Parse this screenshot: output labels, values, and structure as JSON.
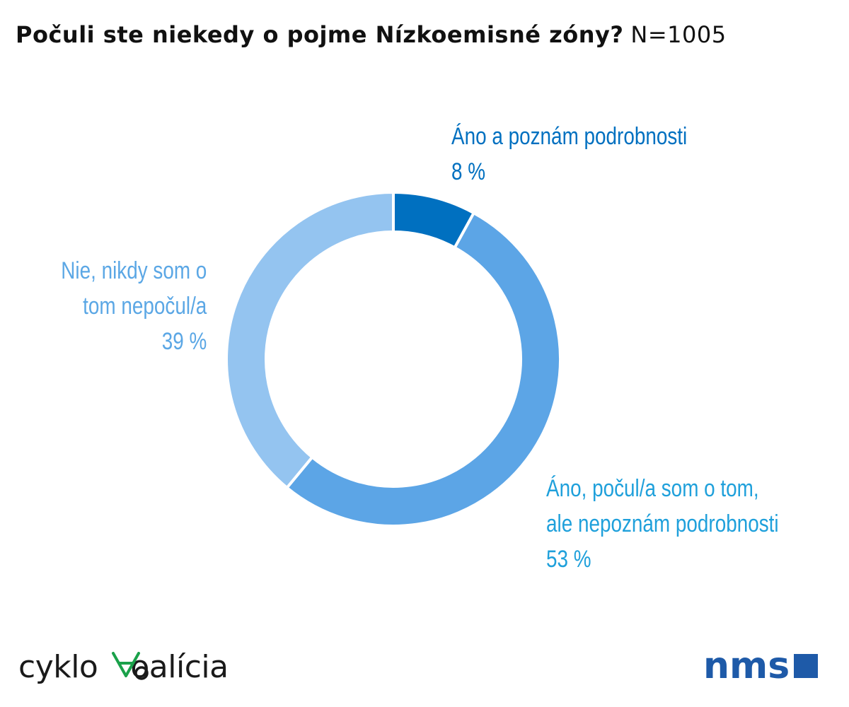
{
  "header": {
    "title": "Počuli ste niekedy o pojme Nízkoemisné zóny?",
    "sample": "N=1005"
  },
  "chart_data": {
    "type": "pie",
    "donut": true,
    "start_angle_deg": 0,
    "categories": [
      "Áno a poznám podrobnosti",
      "Áno, počul/a som o tom, ale nepoznám podrobnosti",
      "Nie, nikdy som o tom nepočul/a"
    ],
    "values": [
      8,
      53,
      39
    ],
    "value_labels": [
      "8 %",
      "53 %",
      "39 %"
    ],
    "colors": [
      "#0070c0",
      "#5ca5e6",
      "#94c4f0"
    ],
    "label_colors": [
      "#0070c0",
      "#1fa0db",
      "#5ba7e5"
    ],
    "label_lines": [
      [
        "Áno a poznám podrobnosti"
      ],
      [
        "Áno, počul/a som o tom,",
        "ale nepoznám podrobnosti"
      ],
      [
        "Nie, nikdy som o",
        "tom nepočul/a"
      ]
    ]
  },
  "logos": {
    "left": {
      "before": "cyklo",
      "after": "oalícia",
      "mark_color": "#1aa14a"
    },
    "right": {
      "text": "nms",
      "color": "#1e5aa8"
    }
  }
}
